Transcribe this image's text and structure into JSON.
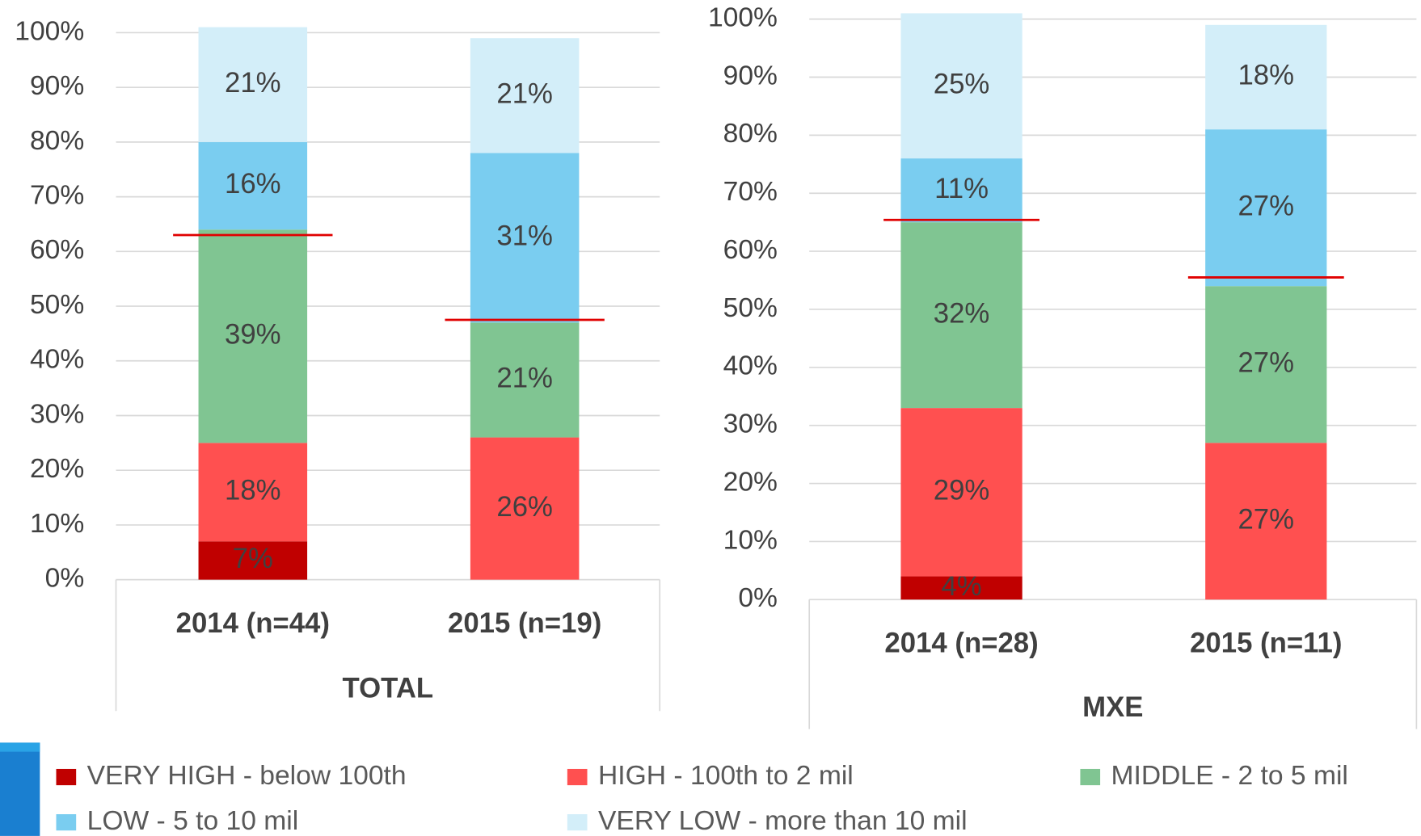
{
  "chart_data": [
    {
      "type": "stacked_bar",
      "xlabel": "TOTAL",
      "categories": [
        "2014 (n=44)",
        "2015 (n=19)"
      ],
      "series": [
        {
          "name": "VERY HIGH - below 100th",
          "color": "#c00000",
          "values": [
            7,
            null
          ],
          "value_labels": [
            "7%",
            null
          ]
        },
        {
          "name": "HIGH - 100th to 2 mil",
          "color": "#ff5050",
          "values": [
            18,
            26
          ],
          "value_labels": [
            "18%",
            "26%"
          ]
        },
        {
          "name": "MIDDLE - 2 to 5 mil",
          "color": "#80c592",
          "values": [
            39,
            21
          ],
          "value_labels": [
            "39%",
            "21%"
          ]
        },
        {
          "name": "LOW - 5 to 10 mil",
          "color": "#7acdf0",
          "values": [
            16,
            31
          ],
          "value_labels": [
            "16%",
            "31%"
          ]
        },
        {
          "name": "VERY LOW - more than 10 mil",
          "color": "#d3eef9",
          "values": [
            21,
            21
          ],
          "value_labels": [
            "21%",
            "21%"
          ]
        }
      ],
      "markers": [
        63,
        47.5
      ],
      "marker_color": "#e00000",
      "ylim": [
        0,
        100
      ],
      "yticks": [
        {
          "value": 0,
          "label": "0%"
        },
        {
          "value": 10,
          "label": "10%"
        },
        {
          "value": 20,
          "label": "20%"
        },
        {
          "value": 30,
          "label": "30%"
        },
        {
          "value": 40,
          "label": "40%"
        },
        {
          "value": 50,
          "label": "50%"
        },
        {
          "value": 60,
          "label": "60%"
        },
        {
          "value": 70,
          "label": "70%"
        },
        {
          "value": 80,
          "label": "80%"
        },
        {
          "value": 90,
          "label": "90%"
        },
        {
          "value": 100,
          "label": "100%"
        }
      ],
      "grid": true
    },
    {
      "type": "stacked_bar",
      "xlabel": "MXE",
      "categories": [
        "2014 (n=28)",
        "2015 (n=11)"
      ],
      "series": [
        {
          "name": "VERY HIGH - below 100th",
          "color": "#c00000",
          "values": [
            4,
            null
          ],
          "value_labels": [
            "4%",
            null
          ]
        },
        {
          "name": "HIGH - 100th to 2 mil",
          "color": "#ff5050",
          "values": [
            29,
            27
          ],
          "value_labels": [
            "29%",
            "27%"
          ]
        },
        {
          "name": "MIDDLE - 2 to 5 mil",
          "color": "#80c592",
          "values": [
            32,
            27
          ],
          "value_labels": [
            "32%",
            "27%"
          ]
        },
        {
          "name": "LOW - 5 to 10 mil",
          "color": "#7acdf0",
          "values": [
            11,
            27
          ],
          "value_labels": [
            "11%",
            "27%"
          ]
        },
        {
          "name": "VERY LOW - more than 10 mil",
          "color": "#d3eef9",
          "values": [
            25,
            18
          ],
          "value_labels": [
            "25%",
            "18%"
          ]
        }
      ],
      "markers": [
        65.4,
        55.5
      ],
      "marker_color": "#e00000",
      "ylim": [
        0,
        100
      ],
      "yticks": [
        {
          "value": 0,
          "label": "0%"
        },
        {
          "value": 10,
          "label": "10%"
        },
        {
          "value": 20,
          "label": "20%"
        },
        {
          "value": 30,
          "label": "30%"
        },
        {
          "value": 40,
          "label": "40%"
        },
        {
          "value": 50,
          "label": "50%"
        },
        {
          "value": 60,
          "label": "60%"
        },
        {
          "value": 70,
          "label": "70%"
        },
        {
          "value": 80,
          "label": "80%"
        },
        {
          "value": 90,
          "label": "90%"
        },
        {
          "value": 100,
          "label": "100%"
        }
      ],
      "grid": true
    }
  ]
}
